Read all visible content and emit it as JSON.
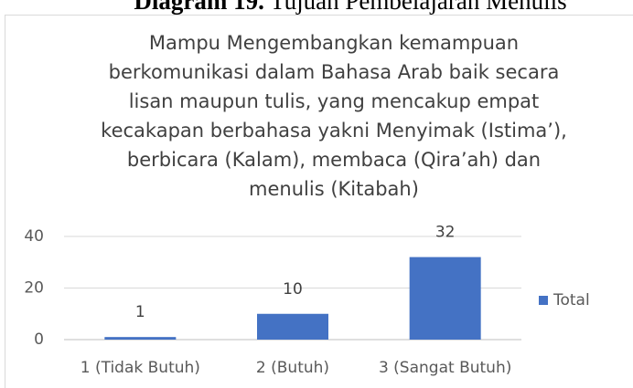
{
  "caption": {
    "label": "Diagram 19.",
    "text": "Tujuan Pembelajaran Menulis"
  },
  "chart_data": {
    "type": "bar",
    "title": [
      "Mampu Mengembangkan kemampuan",
      "berkomunikasi dalam Bahasa Arab baik secara",
      "lisan maupun tulis, yang mencakup empat",
      "kecakapan berbahasa yakni Menyimak (Istima’),",
      "berbicara (Kalam), membaca (Qira’ah) dan",
      "menulis (Kitabah)"
    ],
    "categories": [
      "1 (Tidak Butuh)",
      "2 (Butuh)",
      "3 (Sangat Butuh)"
    ],
    "series": [
      {
        "name": "Total",
        "color": "#4472c4",
        "values": [
          1,
          10,
          32
        ]
      }
    ],
    "ylim": [
      0,
      40
    ],
    "yticks": [
      0,
      20,
      40
    ],
    "grid": true,
    "legend": "right"
  }
}
